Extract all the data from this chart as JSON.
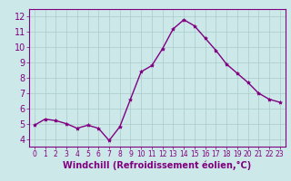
{
  "hours": [
    0,
    1,
    2,
    3,
    4,
    5,
    6,
    7,
    8,
    9,
    10,
    11,
    12,
    13,
    14,
    15,
    16,
    17,
    18,
    19,
    20,
    21,
    22,
    23
  ],
  "values": [
    4.9,
    5.3,
    5.2,
    5.0,
    4.7,
    4.9,
    4.7,
    3.9,
    4.8,
    6.6,
    8.4,
    8.8,
    9.9,
    11.2,
    11.8,
    11.4,
    10.6,
    9.8,
    8.9,
    8.3,
    7.7,
    7.0,
    6.6,
    6.4
  ],
  "line_color": "#800080",
  "marker": "*",
  "marker_size": 3,
  "background_color": "#cce8e8",
  "grid_color": "#aacccc",
  "xlabel": "Windchill (Refroidissement éolien,°C)",
  "ylim": [
    3.5,
    12.5
  ],
  "yticks": [
    4,
    5,
    6,
    7,
    8,
    9,
    10,
    11,
    12
  ],
  "xticks": [
    0,
    1,
    2,
    3,
    4,
    5,
    6,
    7,
    8,
    9,
    10,
    11,
    12,
    13,
    14,
    15,
    16,
    17,
    18,
    19,
    20,
    21,
    22,
    23
  ],
  "axis_color": "#800080",
  "tick_color": "#800080",
  "label_color": "#800080",
  "xlabel_fontsize": 7,
  "ytick_fontsize": 7,
  "xtick_fontsize": 5.5
}
